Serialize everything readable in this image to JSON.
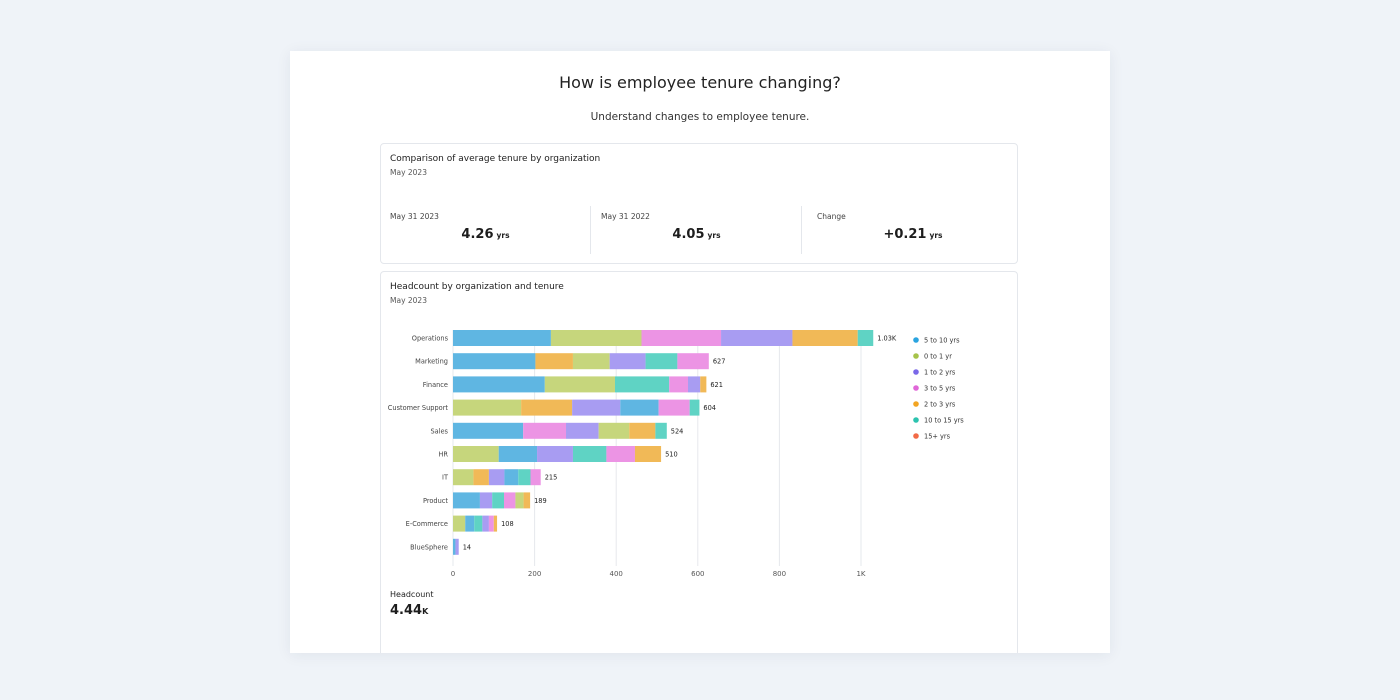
{
  "page": {
    "title": "How is employee tenure changing?",
    "subtitle": "Understand changes to employee tenure."
  },
  "tenure_card": {
    "title": "Comparison of average tenure by organization",
    "subtitle": "May 2023",
    "kpis": [
      {
        "label": "May 31 2023",
        "value": "4.26",
        "unit": "yrs"
      },
      {
        "label": "May 31 2022",
        "value": "4.05",
        "unit": "yrs"
      },
      {
        "label": "Change",
        "value": "+0.21",
        "unit": "yrs"
      }
    ]
  },
  "headcount_card": {
    "title": "Headcount by organization and tenure",
    "subtitle": "May 2023",
    "total_label": "Headcount",
    "total_value": "4.44",
    "total_unit": "K"
  },
  "colors": {
    "5 to 10 yrs": "#5fb6e2",
    "0 to 1 yr": "#c6d67c",
    "1 to 2 yrs": "#a89cf2",
    "3 to 5 yrs": "#ec94e4",
    "2 to 3 yrs": "#f1b957",
    "10 to 15 yrs": "#5fd3c4",
    "15+ yrs": "#f4795b",
    "legend_dots": {
      "5 to 10 yrs": "#2aa4e0",
      "0 to 1 yr": "#a6c34a",
      "1 to 2 yrs": "#7a68e8",
      "3 to 5 yrs": "#e067d8",
      "2 to 3 yrs": "#f2a523",
      "10 to 15 yrs": "#2cc3af",
      "15+ yrs": "#f26a47"
    }
  },
  "chart_data": {
    "type": "bar",
    "orientation": "horizontal",
    "stacked": true,
    "title": "Headcount by organization and tenure",
    "xlabel": "",
    "ylabel": "",
    "xlim": [
      0,
      1000
    ],
    "x_ticks": [
      0,
      200,
      400,
      600,
      800,
      1000
    ],
    "x_tick_labels": [
      "0",
      "200",
      "400",
      "600",
      "800",
      "1K"
    ],
    "grid": true,
    "legend_position": "right",
    "legend": [
      "5 to 10 yrs",
      "0 to 1 yr",
      "1 to 2 yrs",
      "3 to 5 yrs",
      "2 to 3 yrs",
      "10 to 15 yrs",
      "15+ yrs"
    ],
    "categories": [
      "Operations",
      "Marketing",
      "Finance",
      "Customer Support",
      "Sales",
      "HR",
      "IT",
      "Product",
      "E-Commerce",
      "BlueSphere"
    ],
    "totals_labels": [
      "1.03K",
      "627",
      "621",
      "604",
      "524",
      "510",
      "215",
      "189",
      "108",
      "14"
    ],
    "bars": [
      {
        "category": "Operations",
        "segments": [
          {
            "series": "5 to 10 yrs",
            "value": 240
          },
          {
            "series": "0 to 1 yr",
            "value": 222
          },
          {
            "series": "3 to 5 yrs",
            "value": 195
          },
          {
            "series": "1 to 2 yrs",
            "value": 175
          },
          {
            "series": "2 to 3 yrs",
            "value": 160
          },
          {
            "series": "10 to 15 yrs",
            "value": 38
          }
        ]
      },
      {
        "category": "Marketing",
        "segments": [
          {
            "series": "5 to 10 yrs",
            "value": 202
          },
          {
            "series": "2 to 3 yrs",
            "value": 92
          },
          {
            "series": "0 to 1 yr",
            "value": 90
          },
          {
            "series": "1 to 2 yrs",
            "value": 88
          },
          {
            "series": "10 to 15 yrs",
            "value": 78
          },
          {
            "series": "3 to 5 yrs",
            "value": 77
          }
        ]
      },
      {
        "category": "Finance",
        "segments": [
          {
            "series": "5 to 10 yrs",
            "value": 225
          },
          {
            "series": "0 to 1 yr",
            "value": 172
          },
          {
            "series": "10 to 15 yrs",
            "value": 133
          },
          {
            "series": "3 to 5 yrs",
            "value": 46
          },
          {
            "series": "1 to 2 yrs",
            "value": 30
          },
          {
            "series": "2 to 3 yrs",
            "value": 15
          }
        ]
      },
      {
        "category": "Customer Support",
        "segments": [
          {
            "series": "0 to 1 yr",
            "value": 167
          },
          {
            "series": "2 to 3 yrs",
            "value": 125
          },
          {
            "series": "1 to 2 yrs",
            "value": 118
          },
          {
            "series": "5 to 10 yrs",
            "value": 94
          },
          {
            "series": "3 to 5 yrs",
            "value": 76
          },
          {
            "series": "10 to 15 yrs",
            "value": 24
          }
        ]
      },
      {
        "category": "Sales",
        "segments": [
          {
            "series": "5 to 10 yrs",
            "value": 172
          },
          {
            "series": "3 to 5 yrs",
            "value": 105
          },
          {
            "series": "1 to 2 yrs",
            "value": 80
          },
          {
            "series": "0 to 1 yr",
            "value": 75
          },
          {
            "series": "2 to 3 yrs",
            "value": 64
          },
          {
            "series": "10 to 15 yrs",
            "value": 28
          }
        ]
      },
      {
        "category": "HR",
        "segments": [
          {
            "series": "0 to 1 yr",
            "value": 112
          },
          {
            "series": "5 to 10 yrs",
            "value": 94
          },
          {
            "series": "1 to 2 yrs",
            "value": 88
          },
          {
            "series": "10 to 15 yrs",
            "value": 82
          },
          {
            "series": "3 to 5 yrs",
            "value": 70
          },
          {
            "series": "2 to 3 yrs",
            "value": 64
          }
        ]
      },
      {
        "category": "IT",
        "segments": [
          {
            "series": "0 to 1 yr",
            "value": 50
          },
          {
            "series": "2 to 3 yrs",
            "value": 38
          },
          {
            "series": "1 to 2 yrs",
            "value": 38
          },
          {
            "series": "5 to 10 yrs",
            "value": 34
          },
          {
            "series": "10 to 15 yrs",
            "value": 30
          },
          {
            "series": "3 to 5 yrs",
            "value": 25
          }
        ]
      },
      {
        "category": "Product",
        "segments": [
          {
            "series": "5 to 10 yrs",
            "value": 66
          },
          {
            "series": "1 to 2 yrs",
            "value": 30
          },
          {
            "series": "10 to 15 yrs",
            "value": 29
          },
          {
            "series": "3 to 5 yrs",
            "value": 28
          },
          {
            "series": "0 to 1 yr",
            "value": 20
          },
          {
            "series": "2 to 3 yrs",
            "value": 16
          }
        ]
      },
      {
        "category": "E-Commerce",
        "segments": [
          {
            "series": "0 to 1 yr",
            "value": 30
          },
          {
            "series": "5 to 10 yrs",
            "value": 22
          },
          {
            "series": "10 to 15 yrs",
            "value": 20
          },
          {
            "series": "1 to 2 yrs",
            "value": 16
          },
          {
            "series": "3 to 5 yrs",
            "value": 12
          },
          {
            "series": "2 to 3 yrs",
            "value": 8
          }
        ]
      },
      {
        "category": "BlueSphere",
        "segments": [
          {
            "series": "5 to 10 yrs",
            "value": 6
          },
          {
            "series": "1 to 2 yrs",
            "value": 8
          }
        ]
      }
    ]
  }
}
